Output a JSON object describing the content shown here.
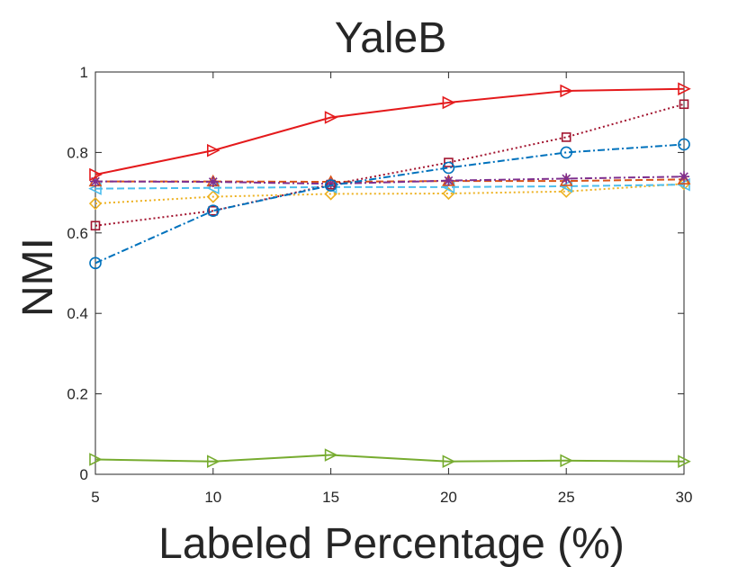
{
  "chart_data": {
    "type": "line",
    "title": "YaleB",
    "xlabel": "Labeled Percentage (%)",
    "ylabel": "NMI",
    "x": [
      5,
      10,
      15,
      20,
      25,
      30
    ],
    "xlim": [
      5,
      30
    ],
    "ylim": [
      0,
      1
    ],
    "xticks": [
      "5",
      "10",
      "15",
      "20",
      "25",
      "30"
    ],
    "yticks": [
      "0",
      "0.2",
      "0.4",
      "0.6",
      "0.8",
      "1"
    ],
    "grid": false,
    "legend": "none",
    "series": [
      {
        "values": [
          0.037,
          0.032,
          0.048,
          0.032,
          0.034,
          0.032
        ],
        "color": "#77AC30",
        "dash": "solid",
        "marker": "triangle-right"
      },
      {
        "values": [
          0.673,
          0.69,
          0.697,
          0.698,
          0.703,
          0.722
        ],
        "color": "#EDB120",
        "dash": "dotted",
        "marker": "diamond"
      },
      {
        "values": [
          0.71,
          0.712,
          0.714,
          0.714,
          0.716,
          0.72
        ],
        "color": "#4DBEEE",
        "dash": "dashed",
        "marker": "triangle-left"
      },
      {
        "values": [
          0.728,
          0.728,
          0.727,
          0.729,
          0.729,
          0.733
        ],
        "color": "#D95319",
        "dash": "dashed",
        "marker": "triangle-up"
      },
      {
        "values": [
          0.728,
          0.727,
          0.722,
          0.73,
          0.735,
          0.74
        ],
        "color": "#7E2F8E",
        "dash": "dashdot",
        "marker": "asterisk"
      },
      {
        "values": [
          0.618,
          0.655,
          0.72,
          0.775,
          0.838,
          0.92
        ],
        "color": "#A2142F",
        "dash": "dotted",
        "marker": "square"
      },
      {
        "values": [
          0.525,
          0.655,
          0.718,
          0.762,
          0.8,
          0.82
        ],
        "color": "#0072BD",
        "dash": "dashdot",
        "marker": "circle"
      },
      {
        "values": [
          0.745,
          0.805,
          0.887,
          0.924,
          0.953,
          0.958
        ],
        "color": "#E41A1C",
        "dash": "solid",
        "marker": "triangle-right"
      }
    ]
  }
}
